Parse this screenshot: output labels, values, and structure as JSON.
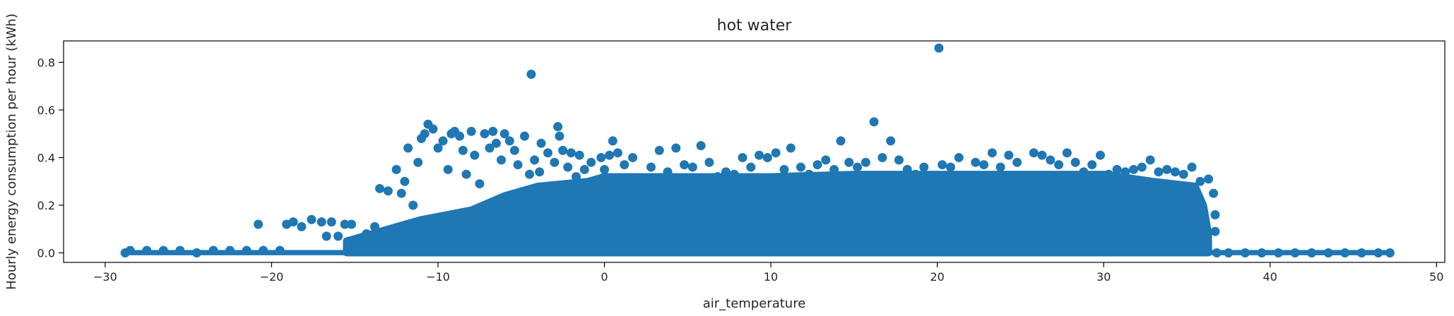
{
  "chart_data": {
    "type": "scatter",
    "title": "hot water",
    "xlabel": "air_temperature",
    "ylabel": "Hourly energy consumption per hour (kWh)",
    "xlim": [
      -32.5,
      50.5
    ],
    "ylim": [
      -0.04,
      0.89
    ],
    "xticks": [
      -30,
      -20,
      -10,
      0,
      10,
      20,
      30,
      40,
      50
    ],
    "yticks": [
      0.0,
      0.2,
      0.4,
      0.6,
      0.8
    ],
    "xtick_labels": [
      "−30",
      "−20",
      "−10",
      "0",
      "10",
      "20",
      "30",
      "40",
      "50"
    ],
    "ytick_labels": [
      "0.0",
      "0.2",
      "0.4",
      "0.6",
      "0.8"
    ],
    "grid": false,
    "color": "#1f77b4",
    "series": [
      {
        "points": [
          [
            -28.8,
            0.0
          ],
          [
            -28.5,
            0.01
          ],
          [
            -27.5,
            0.01
          ],
          [
            -26.5,
            0.01
          ],
          [
            -25.5,
            0.01
          ],
          [
            -24.5,
            0.0
          ],
          [
            -23.5,
            0.01
          ],
          [
            -22.5,
            0.01
          ],
          [
            -21.5,
            0.01
          ],
          [
            -20.8,
            0.12
          ],
          [
            -20.5,
            0.01
          ],
          [
            -19.5,
            0.01
          ],
          [
            -19.1,
            0.12
          ],
          [
            -18.7,
            0.13
          ],
          [
            -18.2,
            0.11
          ],
          [
            -17.6,
            0.14
          ],
          [
            -17.0,
            0.13
          ],
          [
            -16.7,
            0.07
          ],
          [
            -16.4,
            0.13
          ],
          [
            -16.0,
            0.07
          ],
          [
            -15.6,
            0.12
          ],
          [
            -15.2,
            0.12
          ],
          [
            -14.8,
            0.05
          ],
          [
            -14.3,
            0.08
          ],
          [
            -13.8,
            0.11
          ],
          [
            -13.5,
            0.27
          ],
          [
            -13.0,
            0.26
          ],
          [
            -12.5,
            0.35
          ],
          [
            -12.2,
            0.25
          ],
          [
            -12.0,
            0.3
          ],
          [
            -11.8,
            0.44
          ],
          [
            -11.5,
            0.2
          ],
          [
            -11.2,
            0.38
          ],
          [
            -11.0,
            0.48
          ],
          [
            -10.8,
            0.5
          ],
          [
            -10.6,
            0.54
          ],
          [
            -10.3,
            0.52
          ],
          [
            -10.0,
            0.44
          ],
          [
            -9.7,
            0.47
          ],
          [
            -9.4,
            0.35
          ],
          [
            -9.2,
            0.5
          ],
          [
            -9.0,
            0.51
          ],
          [
            -8.7,
            0.49
          ],
          [
            -8.5,
            0.43
          ],
          [
            -8.3,
            0.33
          ],
          [
            -8.0,
            0.51
          ],
          [
            -7.8,
            0.41
          ],
          [
            -7.5,
            0.29
          ],
          [
            -7.2,
            0.5
          ],
          [
            -6.9,
            0.44
          ],
          [
            -6.7,
            0.51
          ],
          [
            -6.5,
            0.46
          ],
          [
            -6.2,
            0.39
          ],
          [
            -6.0,
            0.5
          ],
          [
            -5.7,
            0.47
          ],
          [
            -5.4,
            0.43
          ],
          [
            -5.2,
            0.37
          ],
          [
            -4.8,
            0.49
          ],
          [
            -4.5,
            0.33
          ],
          [
            -4.4,
            0.75
          ],
          [
            -4.2,
            0.39
          ],
          [
            -3.9,
            0.34
          ],
          [
            -3.8,
            0.46
          ],
          [
            -3.4,
            0.42
          ],
          [
            -3.0,
            0.38
          ],
          [
            -2.8,
            0.53
          ],
          [
            -2.7,
            0.49
          ],
          [
            -2.5,
            0.43
          ],
          [
            -2.2,
            0.36
          ],
          [
            -2.0,
            0.42
          ],
          [
            -1.7,
            0.32
          ],
          [
            -1.5,
            0.41
          ],
          [
            -1.2,
            0.35
          ],
          [
            -0.8,
            0.38
          ],
          [
            -0.5,
            0.3
          ],
          [
            -0.2,
            0.4
          ],
          [
            0.0,
            0.35
          ],
          [
            0.3,
            0.41
          ],
          [
            0.5,
            0.47
          ],
          [
            0.8,
            0.42
          ],
          [
            1.2,
            0.37
          ],
          [
            1.7,
            0.4
          ],
          [
            2.2,
            0.31
          ],
          [
            2.8,
            0.36
          ],
          [
            3.3,
            0.43
          ],
          [
            3.8,
            0.34
          ],
          [
            4.3,
            0.44
          ],
          [
            4.8,
            0.37
          ],
          [
            5.3,
            0.36
          ],
          [
            5.8,
            0.45
          ],
          [
            6.3,
            0.38
          ],
          [
            6.8,
            0.32
          ],
          [
            7.3,
            0.34
          ],
          [
            7.8,
            0.33
          ],
          [
            8.3,
            0.4
          ],
          [
            8.8,
            0.36
          ],
          [
            9.3,
            0.41
          ],
          [
            9.8,
            0.4
          ],
          [
            10.3,
            0.42
          ],
          [
            10.8,
            0.35
          ],
          [
            11.2,
            0.44
          ],
          [
            11.8,
            0.36
          ],
          [
            12.3,
            0.33
          ],
          [
            12.8,
            0.37
          ],
          [
            13.3,
            0.39
          ],
          [
            13.8,
            0.35
          ],
          [
            14.2,
            0.47
          ],
          [
            14.7,
            0.38
          ],
          [
            15.2,
            0.36
          ],
          [
            15.7,
            0.38
          ],
          [
            16.2,
            0.55
          ],
          [
            16.7,
            0.4
          ],
          [
            17.2,
            0.47
          ],
          [
            17.7,
            0.39
          ],
          [
            18.2,
            0.35
          ],
          [
            18.7,
            0.33
          ],
          [
            19.2,
            0.36
          ],
          [
            19.7,
            0.3
          ],
          [
            20.1,
            0.86
          ],
          [
            20.3,
            0.37
          ],
          [
            20.8,
            0.36
          ],
          [
            21.3,
            0.4
          ],
          [
            21.8,
            0.32
          ],
          [
            22.3,
            0.38
          ],
          [
            22.8,
            0.37
          ],
          [
            23.3,
            0.42
          ],
          [
            23.8,
            0.36
          ],
          [
            24.3,
            0.41
          ],
          [
            24.8,
            0.38
          ],
          [
            25.3,
            0.32
          ],
          [
            25.8,
            0.42
          ],
          [
            26.3,
            0.41
          ],
          [
            26.8,
            0.39
          ],
          [
            27.3,
            0.37
          ],
          [
            27.8,
            0.42
          ],
          [
            28.3,
            0.38
          ],
          [
            28.8,
            0.34
          ],
          [
            29.3,
            0.37
          ],
          [
            29.8,
            0.41
          ],
          [
            30.3,
            0.33
          ],
          [
            30.8,
            0.35
          ],
          [
            31.3,
            0.34
          ],
          [
            31.8,
            0.35
          ],
          [
            32.3,
            0.36
          ],
          [
            32.8,
            0.39
          ],
          [
            33.3,
            0.34
          ],
          [
            33.8,
            0.35
          ],
          [
            34.3,
            0.34
          ],
          [
            34.8,
            0.33
          ],
          [
            35.3,
            0.36
          ],
          [
            35.8,
            0.3
          ],
          [
            36.3,
            0.31
          ],
          [
            36.6,
            0.25
          ],
          [
            36.7,
            0.16
          ],
          [
            36.7,
            0.09
          ],
          [
            36.8,
            0.0
          ],
          [
            37.5,
            0.0
          ],
          [
            38.5,
            0.0
          ],
          [
            39.5,
            0.0
          ],
          [
            40.5,
            0.0
          ],
          [
            41.5,
            0.0
          ],
          [
            42.5,
            0.0
          ],
          [
            43.5,
            0.0
          ],
          [
            44.5,
            0.0
          ],
          [
            45.5,
            0.0
          ],
          [
            46.5,
            0.0
          ],
          [
            47.2,
            0.0
          ]
        ]
      }
    ],
    "dense_band": {
      "comment_free_polygon": [
        [
          -15.5,
          0.0
        ],
        [
          -15.5,
          0.05
        ],
        [
          -13.0,
          0.1
        ],
        [
          -11.0,
          0.14
        ],
        [
          -8.0,
          0.18
        ],
        [
          -6.0,
          0.24
        ],
        [
          -4.0,
          0.28
        ],
        [
          -1.0,
          0.3
        ],
        [
          0.0,
          0.32
        ],
        [
          5.0,
          0.32
        ],
        [
          10.0,
          0.32
        ],
        [
          15.0,
          0.33
        ],
        [
          20.0,
          0.33
        ],
        [
          25.0,
          0.33
        ],
        [
          30.0,
          0.33
        ],
        [
          33.0,
          0.3
        ],
        [
          35.5,
          0.28
        ],
        [
          36.0,
          0.2
        ],
        [
          36.3,
          0.08
        ],
        [
          36.3,
          0.0
        ]
      ]
    }
  }
}
